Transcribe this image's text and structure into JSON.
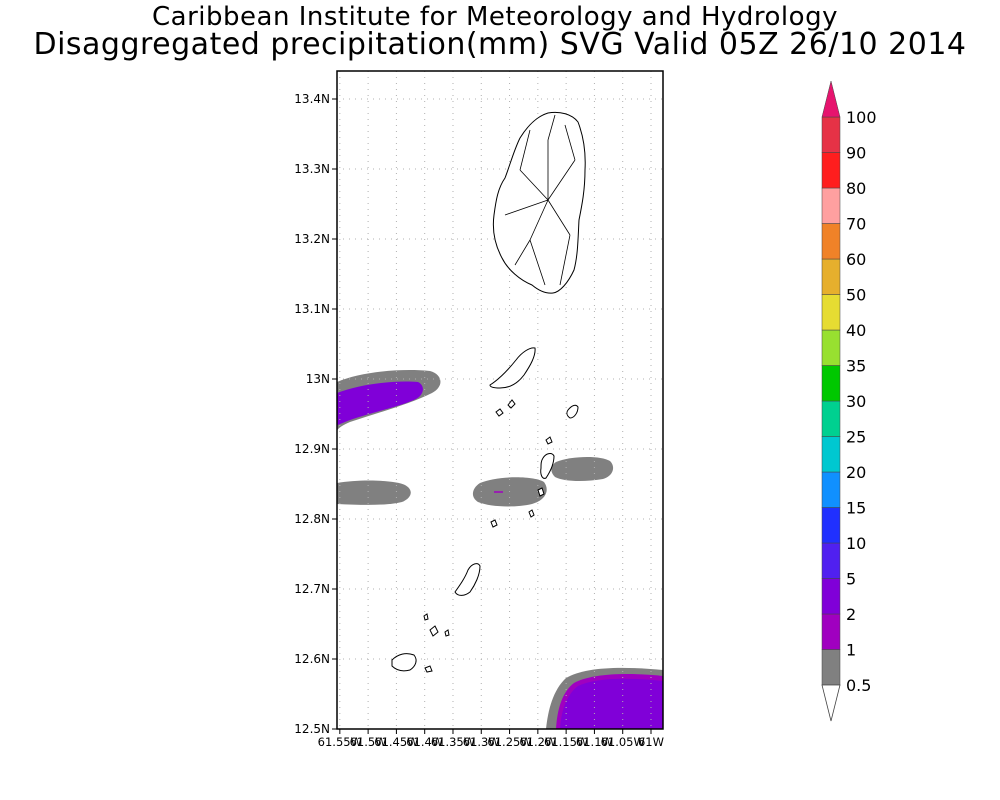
{
  "header": {
    "institute": "Caribbean Institute for Meteorology and Hydrology",
    "product": "Disaggregated precipitation(mm) SVG Valid 05Z 26/10 2014"
  },
  "map": {
    "lat_labels": [
      "13.4N",
      "13.3N",
      "13.2N",
      "13.1N",
      "13N",
      "12.9N",
      "12.8N",
      "12.7N",
      "12.6N",
      "12.5N"
    ],
    "lon_labels": [
      "61.55W",
      "61.5W",
      "61.45W",
      "61.4W",
      "61.35W",
      "61.3W",
      "61.25W",
      "61.2W",
      "61.15W",
      "61.1W",
      "61.05W",
      "61W"
    ],
    "lat_range": [
      12.5,
      13.44
    ],
    "lon_range": [
      -61.56,
      -61.0
    ]
  },
  "legend": {
    "levels": [
      "0.5",
      "1",
      "2",
      "5",
      "10",
      "15",
      "20",
      "25",
      "30",
      "35",
      "40",
      "50",
      "60",
      "70",
      "80",
      "90",
      "100"
    ],
    "colors": [
      "#808080",
      "#a000c0",
      "#8000d8",
      "#5020f0",
      "#2030ff",
      "#1090ff",
      "#00c8d0",
      "#00d090",
      "#00c800",
      "#98e030",
      "#e6dc32",
      "#e6af2d",
      "#f08228",
      "#ffa0a0",
      "#ff1e1e",
      "#e63246",
      "#e6146e"
    ]
  }
}
